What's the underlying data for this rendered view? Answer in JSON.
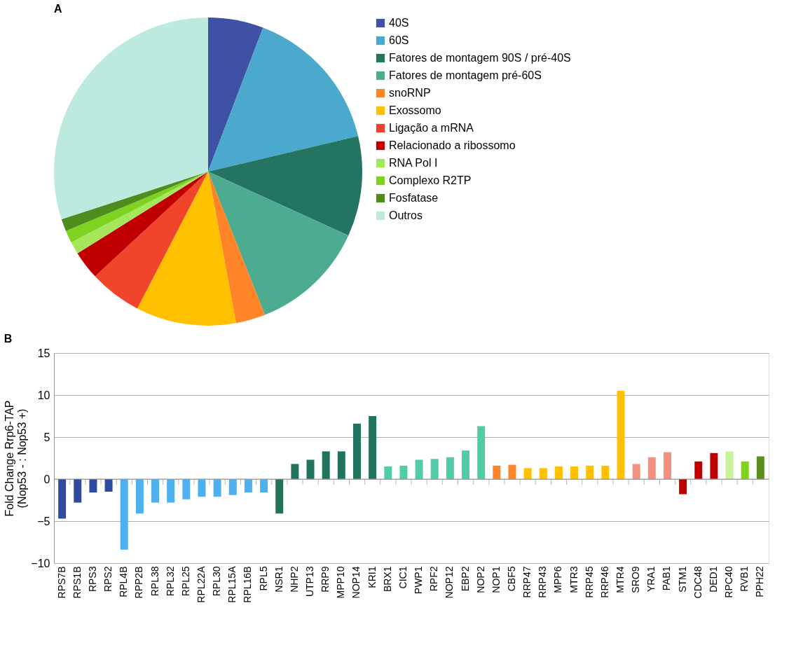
{
  "chart_data": [
    {
      "type": "pie",
      "title": "A",
      "legend": "right",
      "categories": [
        "40S",
        "60S",
        "Fatores de montagem 90S / pré-40S",
        "Fatores de montagem pré-60S",
        "snoRNP",
        "Exossomo",
        "Ligação a mRNA",
        "Relacionado a ribossomo",
        "RNA Pol I",
        "Complexo R2TP",
        "Fosfatase",
        "Outros"
      ],
      "values": [
        5.8,
        15.5,
        10.5,
        12.2,
        3.1,
        10.5,
        5.5,
        3.0,
        1.3,
        1.3,
        1.3,
        30.0
      ],
      "colors": [
        "#3f51a5",
        "#4aa9cc",
        "#237561",
        "#4dab8f",
        "#ff8427",
        "#ffc000",
        "#f0452a",
        "#c00000",
        "#a6e65a",
        "#7ed321",
        "#4f8c1e",
        "#bdeadf"
      ]
    },
    {
      "type": "bar",
      "title": "B",
      "ylabel": "Fold Change Rrp6-TAP\n(Nop53 - : Nop53 +)",
      "grid": "y",
      "ylim": [
        -10,
        15
      ],
      "yticks": [
        -10,
        -5,
        0,
        5,
        10,
        15
      ],
      "categories": [
        "RPS7B",
        "RPS1B",
        "RPS3",
        "RPS2",
        "RPL4B",
        "RPP2B",
        "RPL38",
        "RPL32",
        "RPL25",
        "RPL22A",
        "RPL30",
        "RPL15A",
        "RPL16B",
        "RPL5",
        "NSR1",
        "NHP2",
        "UTP13",
        "RRP9",
        "MPP10",
        "NOP14",
        "KRI1",
        "BRX1",
        "CIC1",
        "PWP1",
        "RPF2",
        "NOP12",
        "EBP2",
        "NOP2",
        "NOP1",
        "CBF5",
        "RRP47",
        "RRP43",
        "MPP6",
        "MTR3",
        "RRP45",
        "RRP46",
        "MTR4",
        "SRO9",
        "YRA1",
        "PAB1",
        "STM1",
        "CDC48",
        "DED1",
        "RPC40",
        "RVB1",
        "PPH22"
      ],
      "values": [
        -4.7,
        -2.8,
        -1.6,
        -1.5,
        -8.4,
        -4.1,
        -2.8,
        -2.8,
        -2.4,
        -2.1,
        -2.1,
        -1.9,
        -1.6,
        -1.6,
        -4.1,
        1.8,
        2.3,
        3.3,
        3.3,
        6.6,
        7.5,
        1.5,
        1.6,
        2.3,
        2.4,
        2.6,
        3.4,
        6.3,
        1.6,
        1.7,
        1.3,
        1.3,
        1.5,
        1.5,
        1.6,
        1.6,
        10.5,
        1.8,
        2.6,
        3.2,
        -1.8,
        2.1,
        3.1,
        3.3,
        2.1,
        2.7
      ],
      "colors": [
        "#2f4b9f",
        "#2f4b9f",
        "#2f4b9f",
        "#2f4b9f",
        "#4fb0f0",
        "#4fb0f0",
        "#4fb0f0",
        "#4fb0f0",
        "#4fb0f0",
        "#4fb0f0",
        "#4fb0f0",
        "#4fb0f0",
        "#4fb0f0",
        "#4fb0f0",
        "#22735d",
        "#22735d",
        "#22735d",
        "#22735d",
        "#22735d",
        "#22735d",
        "#22735d",
        "#52cca8",
        "#52cca8",
        "#52cca8",
        "#52cca8",
        "#52cca8",
        "#52cca8",
        "#52cca8",
        "#ff8427",
        "#ff8427",
        "#ffc000",
        "#ffc000",
        "#ffc000",
        "#ffc000",
        "#ffc000",
        "#ffc000",
        "#ffc000",
        "#f4907e",
        "#f4907e",
        "#f4907e",
        "#c00000",
        "#c00000",
        "#c00000",
        "#c9f29b",
        "#7ed321",
        "#5a8f1e"
      ]
    }
  ]
}
